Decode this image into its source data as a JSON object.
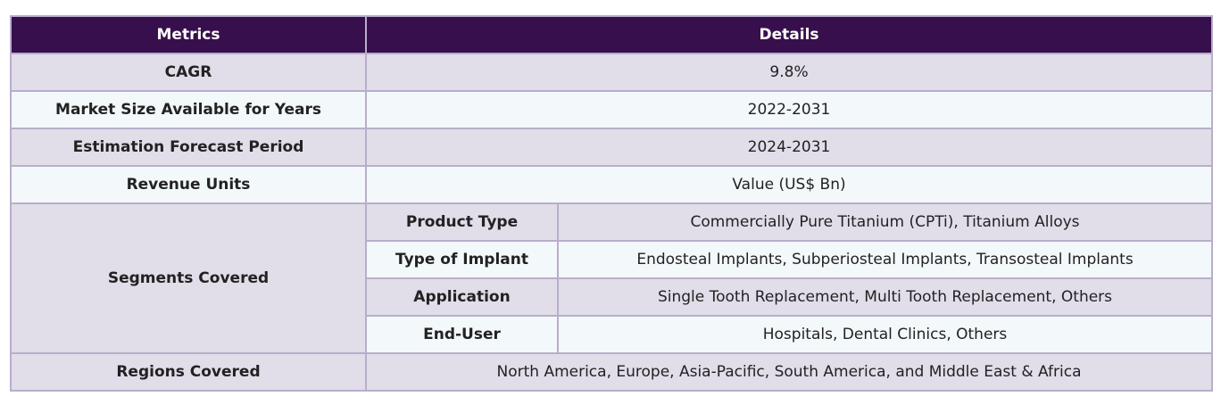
{
  "header": {
    "metrics_label": "Metrics",
    "details_label": "Details"
  },
  "rows": [
    {
      "metric": "CAGR",
      "detail": "9.8%"
    },
    {
      "metric": "Market Size Available for Years",
      "detail": "2022-2031"
    },
    {
      "metric": "Estimation Forecast Period",
      "detail": "2024-2031"
    },
    {
      "metric": "Revenue Units",
      "detail": "Value (US$ Bn)"
    }
  ],
  "segments": {
    "label": "Segments Covered",
    "items": [
      {
        "name": "Product Type",
        "value": "Commercially Pure Titanium (CPTi), Titanium Alloys"
      },
      {
        "name": "Type of Implant",
        "value": "Endosteal Implants, Subperiosteal Implants, Transosteal Implants"
      },
      {
        "name": "Application",
        "value": "Single Tooth Replacement, Multi Tooth Replacement, Others"
      },
      {
        "name": "End-User",
        "value": "Hospitals, Dental Clinics, Others"
      }
    ]
  },
  "regions": {
    "label": "Regions Covered",
    "detail": "North America, Europe, Asia-Pacific, South America, and Middle East & Africa"
  }
}
